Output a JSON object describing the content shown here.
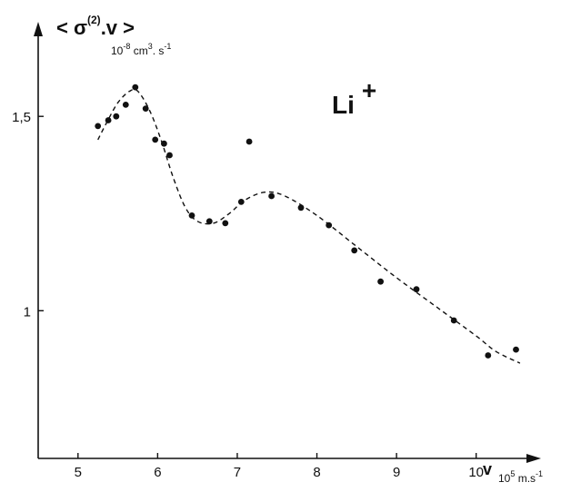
{
  "chart_data": {
    "type": "scatter",
    "title": "",
    "species_label": {
      "base": "Li",
      "sup": "+"
    },
    "ylabel": {
      "open": "< σ",
      "sup": "(2)",
      "close": ".v >"
    },
    "yunits": {
      "base": "10",
      "exp": "-8",
      "mid": " cm",
      "exp2": "3",
      "tail": ". s",
      "exp3": "-1"
    },
    "xlabel": "v",
    "xunits": {
      "base": "10",
      "exp": "5",
      "mid": " m.s",
      "exp3": "-1"
    },
    "xlim": [
      4.5,
      10.7
    ],
    "ylim": [
      0.62,
      1.72
    ],
    "xticks": [
      {
        "value": 5,
        "label": "5"
      },
      {
        "value": 6,
        "label": "6"
      },
      {
        "value": 7,
        "label": "7"
      },
      {
        "value": 8,
        "label": "8"
      },
      {
        "value": 9,
        "label": "9"
      },
      {
        "value": 10,
        "label": "10"
      }
    ],
    "yticks": [
      {
        "value": 1.0,
        "label": "1"
      },
      {
        "value": 1.5,
        "label": "1,5"
      }
    ],
    "grid": false,
    "series": [
      {
        "style": "markers",
        "points": [
          [
            5.25,
            1.475
          ],
          [
            5.38,
            1.49
          ],
          [
            5.48,
            1.5
          ],
          [
            5.6,
            1.53
          ],
          [
            5.72,
            1.575
          ],
          [
            5.85,
            1.52
          ],
          [
            5.97,
            1.44
          ],
          [
            6.08,
            1.43
          ],
          [
            6.15,
            1.4
          ],
          [
            6.43,
            1.245
          ],
          [
            6.65,
            1.23
          ],
          [
            6.85,
            1.225
          ],
          [
            7.05,
            1.28
          ],
          [
            7.15,
            1.435
          ],
          [
            7.43,
            1.295
          ],
          [
            7.8,
            1.265
          ],
          [
            8.15,
            1.22
          ],
          [
            8.47,
            1.155
          ],
          [
            8.8,
            1.075
          ],
          [
            9.25,
            1.055
          ],
          [
            9.72,
            0.975
          ],
          [
            10.15,
            0.885
          ],
          [
            10.5,
            0.9
          ]
        ]
      },
      {
        "style": "dashed",
        "points": [
          [
            5.25,
            1.44
          ],
          [
            5.35,
            1.48
          ],
          [
            5.5,
            1.535
          ],
          [
            5.65,
            1.565
          ],
          [
            5.75,
            1.565
          ],
          [
            5.9,
            1.515
          ],
          [
            6.05,
            1.435
          ],
          [
            6.2,
            1.34
          ],
          [
            6.35,
            1.265
          ],
          [
            6.5,
            1.23
          ],
          [
            6.7,
            1.225
          ],
          [
            6.9,
            1.25
          ],
          [
            7.1,
            1.285
          ],
          [
            7.35,
            1.305
          ],
          [
            7.6,
            1.295
          ],
          [
            8.0,
            1.245
          ],
          [
            8.5,
            1.165
          ],
          [
            9.0,
            1.085
          ],
          [
            9.5,
            1.01
          ],
          [
            10.0,
            0.935
          ],
          [
            10.25,
            0.895
          ],
          [
            10.55,
            0.865
          ]
        ]
      }
    ]
  }
}
